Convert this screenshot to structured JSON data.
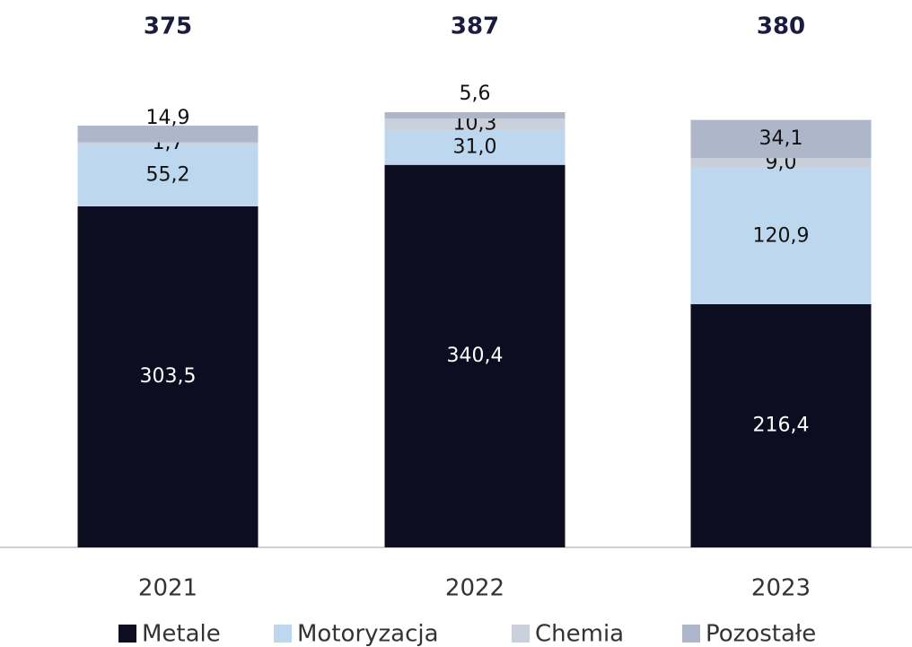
{
  "chart_data": {
    "type": "stacked-bar",
    "categories": [
      "2021",
      "2022",
      "2023"
    ],
    "totals": [
      375,
      387,
      380
    ],
    "series": [
      {
        "name": "Metale",
        "color": "#0d0d22",
        "values": [
          303.5,
          340.4,
          216.4
        ],
        "value_labels": [
          "303,5",
          "340,4",
          "216,4"
        ]
      },
      {
        "name": "Motoryzacja",
        "color": "#bdd7ee",
        "values": [
          55.2,
          31.0,
          120.9
        ],
        "value_labels": [
          "55,2",
          "31,0",
          "120,9"
        ]
      },
      {
        "name": "Chemia",
        "color": "#c9d0dc",
        "values": [
          1.7,
          10.3,
          9.0
        ],
        "value_labels": [
          "1,7",
          "10,3",
          "9,0"
        ]
      },
      {
        "name": "Pozostałe",
        "color": "#adb7c9",
        "values": [
          14.9,
          5.6,
          34.1
        ],
        "value_labels": [
          "14,9",
          "5,6",
          "34,1"
        ]
      }
    ]
  }
}
